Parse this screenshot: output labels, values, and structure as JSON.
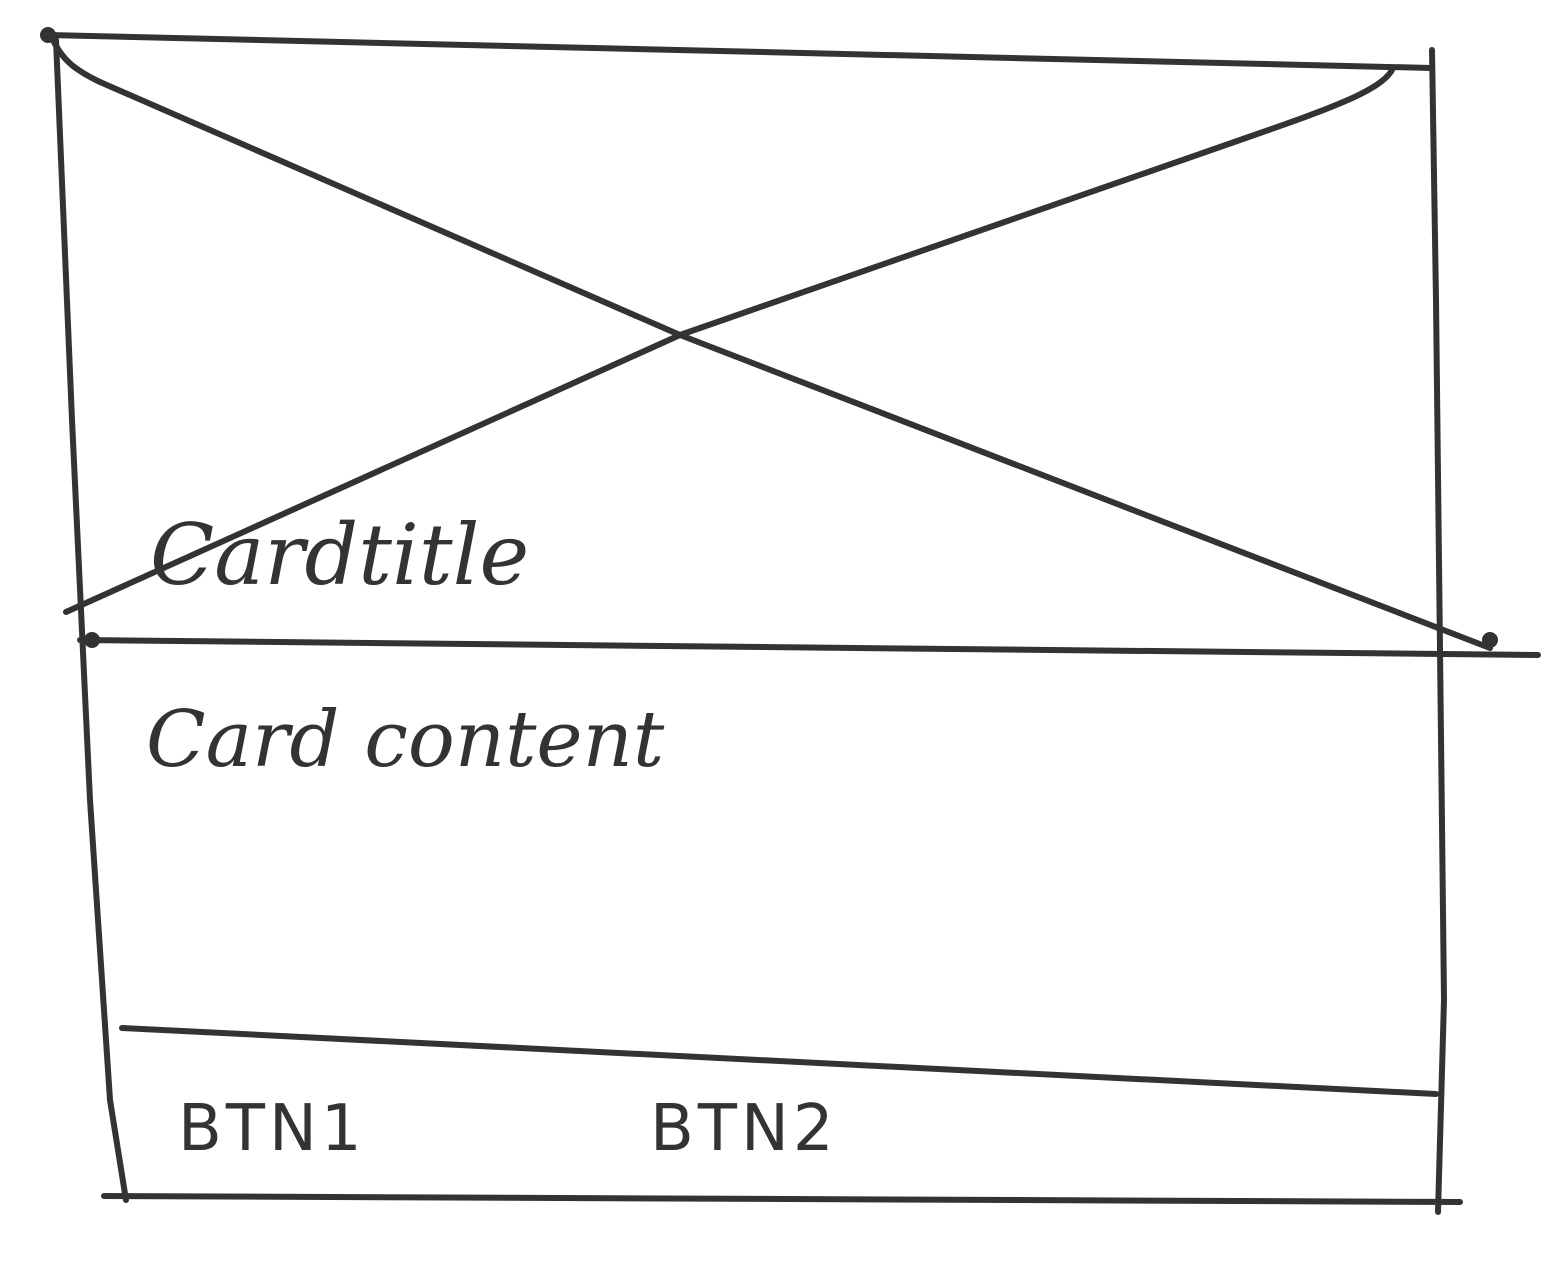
{
  "card": {
    "title": "Cardtitle",
    "content": "Card content",
    "buttons": [
      {
        "label": "BTN1"
      },
      {
        "label": "BTN2"
      }
    ]
  },
  "colors": {
    "ink": "#333333",
    "paper": "#ffffff"
  }
}
